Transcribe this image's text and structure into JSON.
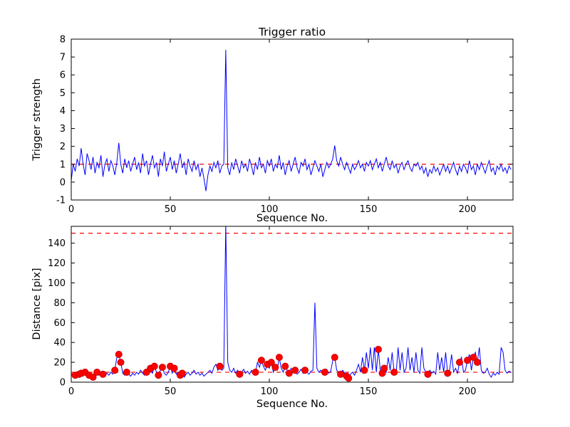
{
  "figure": {
    "background": "#ffffff"
  },
  "chart_data": [
    {
      "type": "line",
      "title": "Trigger ratio",
      "xlabel": "Sequence No.",
      "ylabel": "Trigger strength",
      "xlim": [
        0,
        223
      ],
      "ylim": [
        -1,
        8
      ],
      "xticks": [
        0,
        50,
        100,
        150,
        200
      ],
      "yticks": [
        -1,
        0,
        1,
        2,
        3,
        4,
        5,
        6,
        7,
        8
      ],
      "line_color": "#0000ff",
      "threshold_color": "#ff0000",
      "thresholds": [
        1.0
      ],
      "grid": false,
      "legend": false,
      "values": [
        0.1,
        1.0,
        0.6,
        1.3,
        0.9,
        1.9,
        1.0,
        0.4,
        1.6,
        1.2,
        0.7,
        1.4,
        0.5,
        1.1,
        0.8,
        1.5,
        0.3,
        1.0,
        1.3,
        0.6,
        1.2,
        0.9,
        0.4,
        1.1,
        2.2,
        1.0,
        0.5,
        1.3,
        0.8,
        1.2,
        0.6,
        1.0,
        1.4,
        0.7,
        1.1,
        0.5,
        1.6,
        0.9,
        1.2,
        0.4,
        1.0,
        1.5,
        0.8,
        1.1,
        0.3,
        1.3,
        0.9,
        1.7,
        0.6,
        1.0,
        1.4,
        0.7,
        1.2,
        0.5,
        1.0,
        1.6,
        0.8,
        1.1,
        0.4,
        1.3,
        0.9,
        0.6,
        1.2,
        0.7,
        1.0,
        0.3,
        0.8,
        0.2,
        -0.5,
        0.4,
        0.9,
        0.6,
        1.1,
        0.8,
        1.2,
        0.5,
        0.9,
        1.0,
        7.4,
        0.8,
        0.4,
        1.1,
        0.7,
        1.3,
        0.9,
        0.5,
        1.2,
        0.8,
        1.0,
        0.6,
        1.3,
        0.9,
        0.4,
        1.1,
        0.7,
        1.4,
        0.8,
        1.0,
        0.5,
        1.2,
        0.9,
        1.3,
        0.6,
        1.0,
        0.8,
        1.5,
        0.7,
        1.1,
        0.4,
        0.9,
        1.2,
        0.6,
        1.0,
        1.4,
        0.8,
        0.5,
        1.1,
        0.9,
        1.3,
        0.7,
        1.0,
        0.4,
        0.8,
        1.2,
        0.9,
        0.6,
        1.0,
        0.3,
        0.7,
        1.1,
        0.8,
        1.0,
        1.3,
        2.05,
        1.2,
        0.9,
        1.4,
        1.0,
        0.7,
        1.1,
        0.8,
        0.5,
        1.0,
        0.7,
        0.9,
        1.2,
        0.8,
        1.0,
        0.6,
        1.1,
        0.9,
        1.2,
        0.7,
        1.0,
        1.3,
        0.8,
        1.1,
        0.6,
        1.0,
        1.4,
        0.9,
        0.7,
        1.2,
        0.8,
        1.0,
        0.5,
        0.9,
        1.1,
        0.7,
        1.0,
        1.2,
        0.8,
        0.6,
        1.0,
        0.9,
        1.1,
        0.7,
        0.9,
        0.5,
        0.8,
        0.3,
        0.7,
        0.5,
        0.9,
        0.6,
        0.8,
        0.4,
        0.7,
        1.0,
        0.6,
        0.9,
        0.5,
        0.8,
        1.1,
        0.7,
        0.4,
        0.9,
        0.6,
        1.0,
        0.8,
        0.5,
        1.2,
        0.7,
        0.9,
        0.4,
        1.0,
        0.7,
        1.1,
        0.8,
        0.5,
        0.9,
        1.2,
        0.6,
        0.8,
        0.4,
        0.9,
        0.7,
        1.0,
        0.6,
        0.8,
        0.5,
        0.9,
        0.7
      ]
    },
    {
      "type": "line",
      "title": "",
      "xlabel": "Sequence No.",
      "ylabel": "Distance [pix]",
      "xlim": [
        0,
        223
      ],
      "ylim": [
        0,
        157
      ],
      "xticks": [
        0,
        50,
        100,
        150,
        200
      ],
      "yticks": [
        0,
        20,
        40,
        60,
        80,
        100,
        120,
        140
      ],
      "line_color": "#0000ff",
      "threshold_color": "#ff0000",
      "marker_color": "#ff0000",
      "thresholds": [
        150,
        10
      ],
      "grid": false,
      "legend": false,
      "values": [
        8,
        9,
        7,
        10,
        8,
        9,
        6,
        10,
        8,
        7,
        9,
        5,
        8,
        10,
        7,
        9,
        8,
        6,
        9,
        7,
        10,
        8,
        12,
        25,
        28,
        20,
        9,
        7,
        10,
        8,
        6,
        9,
        7,
        10,
        8,
        12,
        9,
        7,
        10,
        8,
        14,
        9,
        16,
        10,
        7,
        12,
        15,
        9,
        7,
        10,
        16,
        9,
        14,
        8,
        10,
        7,
        9,
        5,
        8,
        10,
        7,
        9,
        12,
        8,
        10,
        7,
        9,
        6,
        8,
        10,
        12,
        9,
        15,
        18,
        12,
        16,
        12,
        14,
        160,
        20,
        12,
        10,
        14,
        9,
        12,
        8,
        10,
        13,
        9,
        11,
        8,
        12,
        9,
        10,
        20,
        15,
        22,
        16,
        12,
        18,
        14,
        20,
        10,
        15,
        12,
        25,
        14,
        10,
        16,
        12,
        9,
        14,
        10,
        12,
        8,
        10,
        13,
        9,
        12,
        10,
        8,
        11,
        12,
        80,
        14,
        10,
        12,
        8,
        10,
        13,
        9,
        11,
        22,
        25,
        12,
        10,
        8,
        12,
        9,
        6,
        4,
        8,
        10,
        7,
        12,
        18,
        10,
        25,
        12,
        30,
        14,
        35,
        12,
        35,
        10,
        33,
        12,
        9,
        14,
        10,
        25,
        12,
        30,
        10,
        8,
        35,
        12,
        30,
        10,
        14,
        35,
        12,
        25,
        10,
        30,
        12,
        9,
        35,
        14,
        10,
        8,
        12,
        9,
        11,
        8,
        30,
        12,
        25,
        10,
        30,
        9,
        12,
        28,
        10,
        14,
        9,
        20,
        25,
        10,
        12,
        22,
        28,
        12,
        25,
        30,
        20,
        35,
        12,
        9,
        10,
        14,
        8,
        5,
        9,
        7,
        10,
        8,
        35,
        30,
        12,
        9,
        11,
        10
      ],
      "markers": [
        [
          2,
          7
        ],
        [
          4,
          8
        ],
        [
          5,
          9
        ],
        [
          7,
          10
        ],
        [
          9,
          7
        ],
        [
          11,
          5
        ],
        [
          13,
          10
        ],
        [
          16,
          8
        ],
        [
          22,
          12
        ],
        [
          24,
          28
        ],
        [
          25,
          20
        ],
        [
          28,
          10
        ],
        [
          38,
          10
        ],
        [
          40,
          14
        ],
        [
          42,
          16
        ],
        [
          44,
          7
        ],
        [
          46,
          15
        ],
        [
          50,
          16
        ],
        [
          52,
          14
        ],
        [
          55,
          7
        ],
        [
          56,
          9
        ],
        [
          75,
          16
        ],
        [
          85,
          8
        ],
        [
          93,
          10
        ],
        [
          96,
          22
        ],
        [
          99,
          18
        ],
        [
          101,
          20
        ],
        [
          103,
          15
        ],
        [
          105,
          25
        ],
        [
          108,
          16
        ],
        [
          110,
          9
        ],
        [
          113,
          12
        ],
        [
          118,
          12
        ],
        [
          128,
          10
        ],
        [
          133,
          25
        ],
        [
          136,
          8
        ],
        [
          139,
          6
        ],
        [
          140,
          4
        ],
        [
          148,
          12
        ],
        [
          155,
          33
        ],
        [
          157,
          9
        ],
        [
          158,
          14
        ],
        [
          163,
          10
        ],
        [
          180,
          8
        ],
        [
          190,
          9
        ],
        [
          196,
          20
        ],
        [
          200,
          22
        ],
        [
          203,
          25
        ],
        [
          205,
          20
        ]
      ]
    }
  ]
}
